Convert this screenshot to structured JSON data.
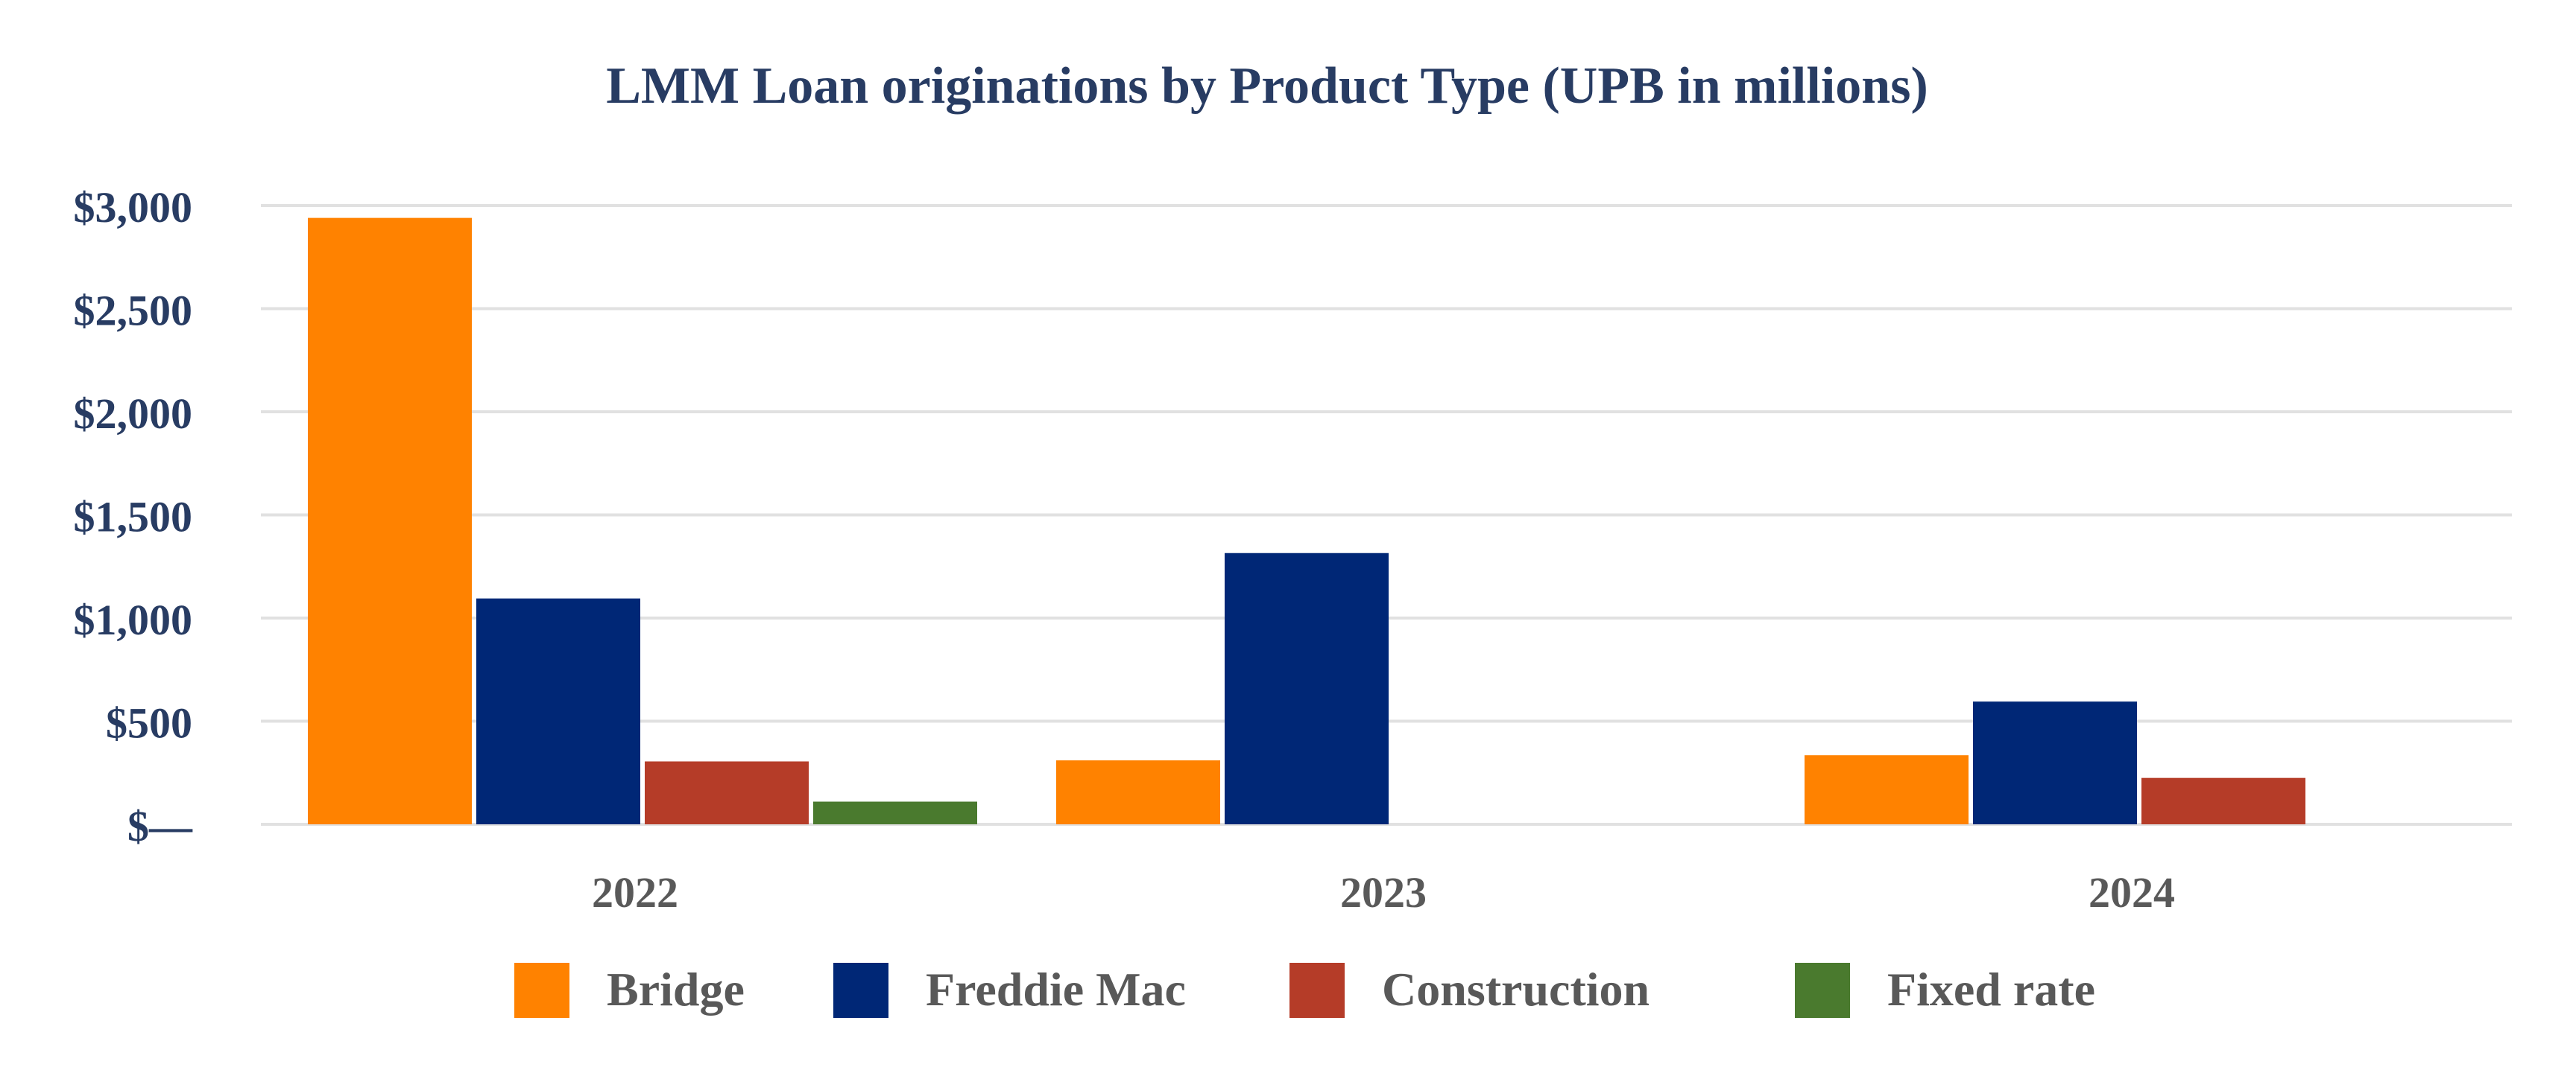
{
  "chart_data": {
    "type": "bar",
    "title": "LMM Loan originations by Product Type (UPB in millions)",
    "xlabel": "",
    "ylabel": "",
    "categories": [
      "2022",
      "2023",
      "2024"
    ],
    "ylim": [
      0,
      3000
    ],
    "yticks": [
      0,
      500,
      1000,
      1500,
      2000,
      2500,
      3000
    ],
    "ytick_labels": [
      "$—",
      "$500",
      "$1,000",
      "$1,500",
      "$2,000",
      "$2,500",
      "$3,000"
    ],
    "grid": true,
    "legend_position": "bottom",
    "series": [
      {
        "name": "Bridge",
        "color": "#FF8200",
        "values": [
          2940,
          310,
          335
        ]
      },
      {
        "name": "Freddie Mac",
        "color": "#002776",
        "values": [
          1095,
          1315,
          595
        ]
      },
      {
        "name": "Construction",
        "color": "#B53C28",
        "values": [
          305,
          0,
          225
        ]
      },
      {
        "name": "Fixed rate",
        "color": "#4A7A2E",
        "values": [
          110,
          0,
          0
        ]
      }
    ],
    "colors": {
      "title": "#283C63",
      "ytick": "#283C63",
      "xtick": "#595959",
      "legend_text": "#595959",
      "grid": "#E1E1E1"
    }
  }
}
